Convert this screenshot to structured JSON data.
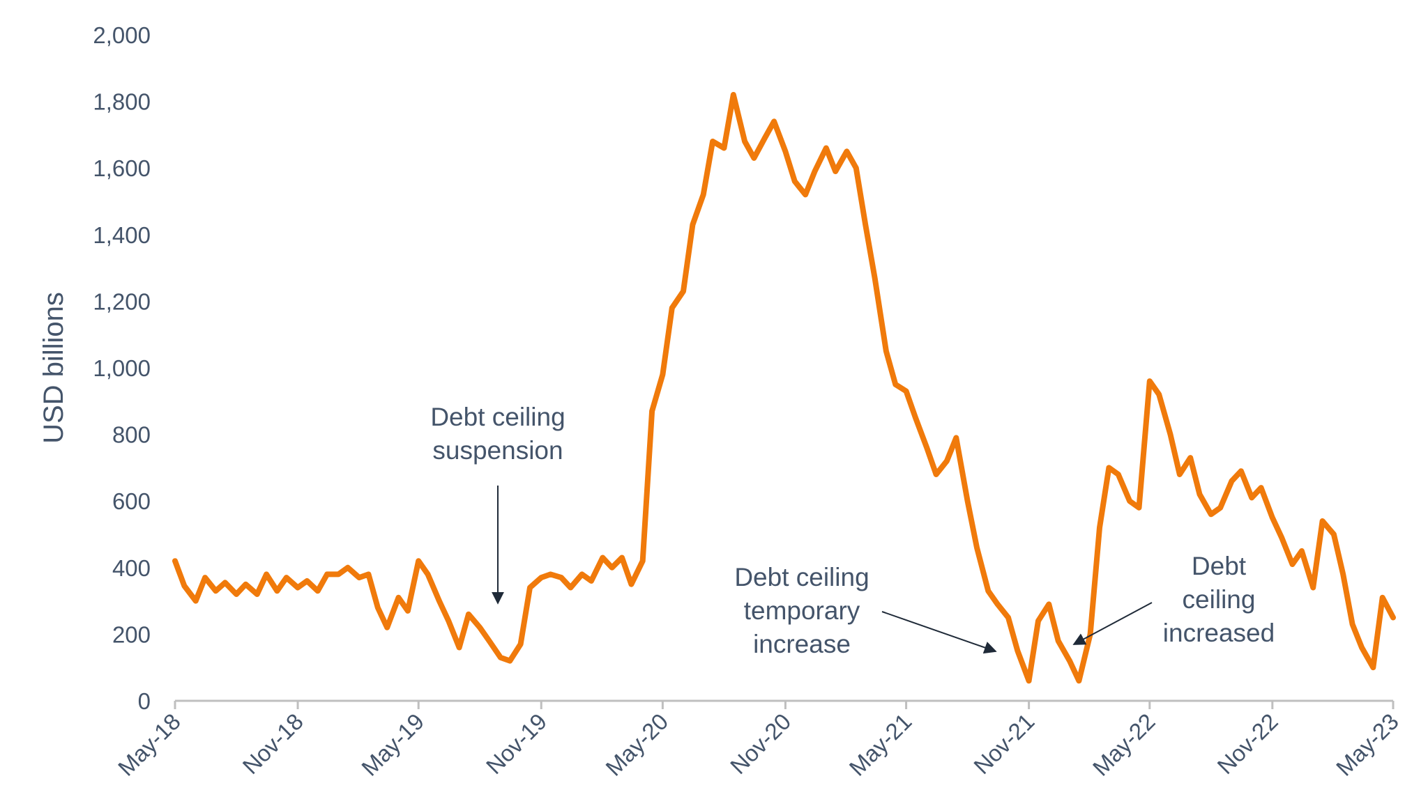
{
  "chart_data": {
    "type": "line",
    "ylabel": "USD billions",
    "xlabel": "",
    "title": "",
    "ylim": [
      0,
      2000
    ],
    "xlim": [
      "2018-05-01",
      "2023-05-01"
    ],
    "yticks": [
      0,
      200,
      400,
      600,
      800,
      1000,
      1200,
      1400,
      1600,
      1800,
      2000
    ],
    "xticks": [
      {
        "date": "2018-05-01",
        "label": "May-18"
      },
      {
        "date": "2018-11-01",
        "label": "Nov-18"
      },
      {
        "date": "2019-05-01",
        "label": "May-19"
      },
      {
        "date": "2019-11-01",
        "label": "Nov-19"
      },
      {
        "date": "2020-05-01",
        "label": "May-20"
      },
      {
        "date": "2020-11-01",
        "label": "Nov-20"
      },
      {
        "date": "2021-05-01",
        "label": "May-21"
      },
      {
        "date": "2021-11-01",
        "label": "Nov-21"
      },
      {
        "date": "2022-05-01",
        "label": "May-22"
      },
      {
        "date": "2022-11-01",
        "label": "Nov-22"
      },
      {
        "date": "2023-05-01",
        "label": "May-23"
      }
    ],
    "grid": false,
    "series": [
      {
        "color": "#f07a0b",
        "points": [
          [
            "2018-05-01",
            420
          ],
          [
            "2018-05-15",
            345
          ],
          [
            "2018-06-01",
            300
          ],
          [
            "2018-06-15",
            370
          ],
          [
            "2018-07-01",
            330
          ],
          [
            "2018-07-15",
            355
          ],
          [
            "2018-08-01",
            320
          ],
          [
            "2018-08-15",
            350
          ],
          [
            "2018-09-01",
            320
          ],
          [
            "2018-09-15",
            380
          ],
          [
            "2018-10-01",
            330
          ],
          [
            "2018-10-15",
            370
          ],
          [
            "2018-11-01",
            340
          ],
          [
            "2018-11-15",
            360
          ],
          [
            "2018-12-01",
            330
          ],
          [
            "2018-12-15",
            380
          ],
          [
            "2019-01-01",
            380
          ],
          [
            "2019-01-15",
            400
          ],
          [
            "2019-02-01",
            370
          ],
          [
            "2019-02-15",
            380
          ],
          [
            "2019-03-01",
            280
          ],
          [
            "2019-03-15",
            220
          ],
          [
            "2019-04-01",
            310
          ],
          [
            "2019-04-15",
            270
          ],
          [
            "2019-05-01",
            420
          ],
          [
            "2019-05-15",
            380
          ],
          [
            "2019-06-01",
            300
          ],
          [
            "2019-06-15",
            240
          ],
          [
            "2019-07-01",
            160
          ],
          [
            "2019-07-15",
            260
          ],
          [
            "2019-08-01",
            220
          ],
          [
            "2019-08-15",
            180
          ],
          [
            "2019-09-01",
            130
          ],
          [
            "2019-09-15",
            120
          ],
          [
            "2019-10-01",
            170
          ],
          [
            "2019-10-15",
            340
          ],
          [
            "2019-11-01",
            370
          ],
          [
            "2019-11-15",
            380
          ],
          [
            "2019-12-01",
            370
          ],
          [
            "2019-12-15",
            340
          ],
          [
            "2020-01-01",
            380
          ],
          [
            "2020-01-15",
            360
          ],
          [
            "2020-02-01",
            430
          ],
          [
            "2020-02-15",
            400
          ],
          [
            "2020-03-01",
            430
          ],
          [
            "2020-03-15",
            350
          ],
          [
            "2020-04-01",
            420
          ],
          [
            "2020-04-15",
            870
          ],
          [
            "2020-05-01",
            980
          ],
          [
            "2020-05-15",
            1180
          ],
          [
            "2020-06-01",
            1230
          ],
          [
            "2020-06-15",
            1430
          ],
          [
            "2020-07-01",
            1520
          ],
          [
            "2020-07-15",
            1680
          ],
          [
            "2020-08-01",
            1660
          ],
          [
            "2020-08-15",
            1820
          ],
          [
            "2020-09-01",
            1680
          ],
          [
            "2020-09-15",
            1630
          ],
          [
            "2020-10-01",
            1690
          ],
          [
            "2020-10-15",
            1740
          ],
          [
            "2020-11-01",
            1650
          ],
          [
            "2020-11-15",
            1560
          ],
          [
            "2020-12-01",
            1520
          ],
          [
            "2020-12-15",
            1590
          ],
          [
            "2021-01-01",
            1660
          ],
          [
            "2021-01-15",
            1590
          ],
          [
            "2021-02-01",
            1650
          ],
          [
            "2021-02-15",
            1600
          ],
          [
            "2021-03-01",
            1430
          ],
          [
            "2021-03-15",
            1270
          ],
          [
            "2021-04-01",
            1050
          ],
          [
            "2021-04-15",
            950
          ],
          [
            "2021-05-01",
            930
          ],
          [
            "2021-05-15",
            850
          ],
          [
            "2021-06-01",
            760
          ],
          [
            "2021-06-15",
            680
          ],
          [
            "2021-07-01",
            720
          ],
          [
            "2021-07-15",
            790
          ],
          [
            "2021-08-01",
            600
          ],
          [
            "2021-08-15",
            460
          ],
          [
            "2021-09-01",
            330
          ],
          [
            "2021-09-15",
            290
          ],
          [
            "2021-10-01",
            250
          ],
          [
            "2021-10-15",
            150
          ],
          [
            "2021-11-01",
            60
          ],
          [
            "2021-11-15",
            240
          ],
          [
            "2021-12-01",
            290
          ],
          [
            "2021-12-15",
            180
          ],
          [
            "2022-01-01",
            120
          ],
          [
            "2022-01-15",
            60
          ],
          [
            "2022-02-01",
            200
          ],
          [
            "2022-02-15",
            520
          ],
          [
            "2022-03-01",
            700
          ],
          [
            "2022-03-15",
            680
          ],
          [
            "2022-04-01",
            600
          ],
          [
            "2022-04-15",
            580
          ],
          [
            "2022-05-01",
            960
          ],
          [
            "2022-05-15",
            920
          ],
          [
            "2022-06-01",
            800
          ],
          [
            "2022-06-15",
            680
          ],
          [
            "2022-07-01",
            730
          ],
          [
            "2022-07-15",
            620
          ],
          [
            "2022-08-01",
            560
          ],
          [
            "2022-08-15",
            580
          ],
          [
            "2022-09-01",
            660
          ],
          [
            "2022-09-15",
            690
          ],
          [
            "2022-10-01",
            610
          ],
          [
            "2022-10-15",
            640
          ],
          [
            "2022-11-01",
            550
          ],
          [
            "2022-11-15",
            490
          ],
          [
            "2022-12-01",
            410
          ],
          [
            "2022-12-15",
            450
          ],
          [
            "2023-01-01",
            340
          ],
          [
            "2023-01-15",
            540
          ],
          [
            "2023-02-01",
            500
          ],
          [
            "2023-02-15",
            380
          ],
          [
            "2023-03-01",
            230
          ],
          [
            "2023-03-15",
            160
          ],
          [
            "2023-04-01",
            100
          ],
          [
            "2023-04-15",
            310
          ],
          [
            "2023-05-01",
            250
          ]
        ]
      }
    ],
    "annotations": [
      {
        "lines": [
          "Debt ceiling",
          "suspension"
        ],
        "target_date": "2019-09-05",
        "target_value": 290
      },
      {
        "lines": [
          "Debt ceiling",
          "temporary",
          "increase"
        ],
        "target_date": "2021-10-20",
        "target_value": 160
      },
      {
        "lines": [
          "Debt",
          "ceiling",
          "increased"
        ],
        "target_date": "2022-02-05",
        "target_value": 180
      }
    ]
  }
}
